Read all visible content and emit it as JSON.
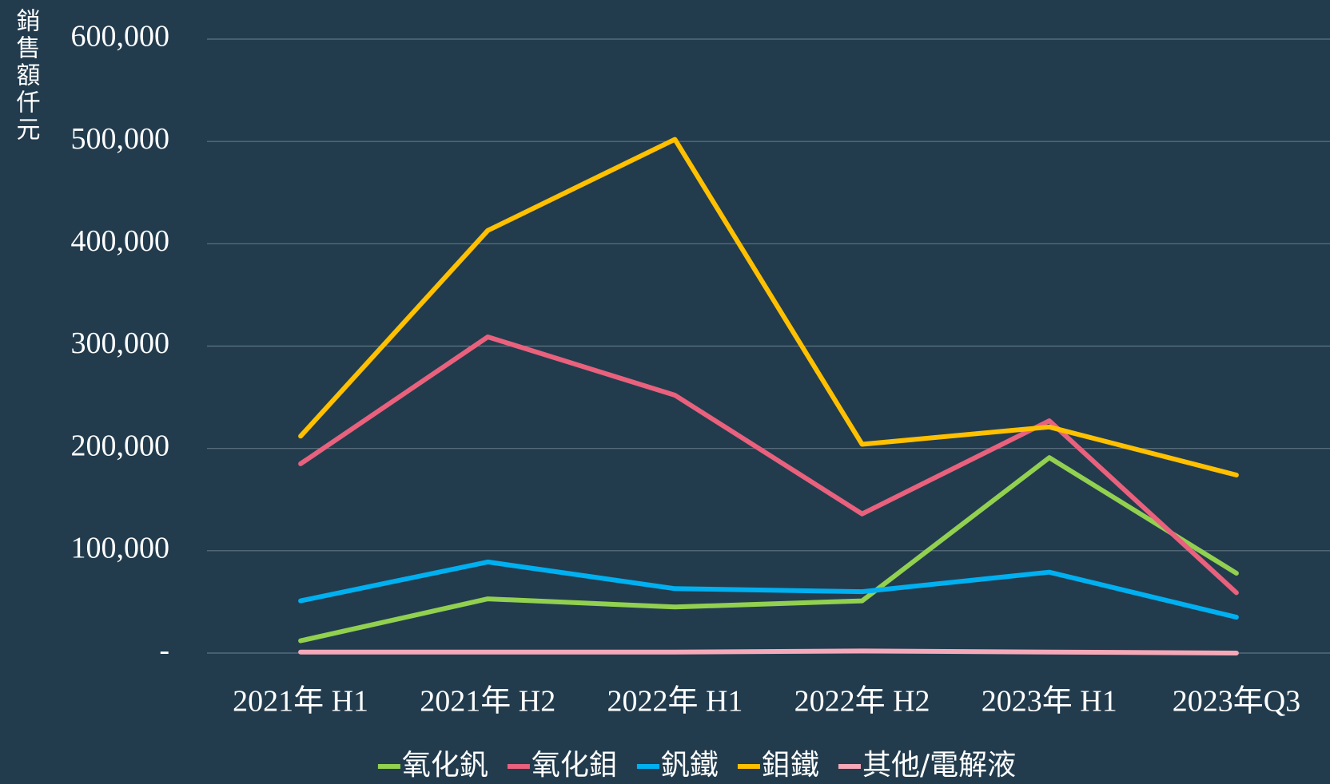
{
  "chart_data": {
    "type": "line",
    "y_label": "銷售額仟元",
    "categories": [
      "2021年 H1",
      "2021年 H2",
      "2022年 H1",
      "2022年 H2",
      "2023年 H1",
      "2023年Q3"
    ],
    "series": [
      {
        "name": "氧化釩",
        "color": "#92d050",
        "values": [
          12000,
          53000,
          45000,
          51000,
          191000,
          78000
        ]
      },
      {
        "name": "氧化鉬",
        "color": "#e9617d",
        "values": [
          185000,
          309000,
          252000,
          136000,
          227000,
          59000
        ]
      },
      {
        "name": "釩鐵",
        "color": "#00b0f0",
        "values": [
          51000,
          89000,
          63000,
          60000,
          79000,
          35000
        ]
      },
      {
        "name": "鉬鐵",
        "color": "#ffc000",
        "values": [
          212000,
          413000,
          502000,
          204000,
          221000,
          174000
        ]
      },
      {
        "name": "其他/電解液",
        "color": "#f4a8b8",
        "values": [
          1000,
          1000,
          1000,
          2000,
          1000,
          0
        ]
      }
    ],
    "ylim": [
      0,
      600000
    ],
    "yticks": [
      {
        "value": 0,
        "label": "-"
      },
      {
        "value": 100000,
        "label": "100,000"
      },
      {
        "value": 200000,
        "label": "200,000"
      },
      {
        "value": 300000,
        "label": "300,000"
      },
      {
        "value": 400000,
        "label": "400,000"
      },
      {
        "value": 500000,
        "label": "500,000"
      },
      {
        "value": 600000,
        "label": "600,000"
      }
    ],
    "grid": true
  }
}
